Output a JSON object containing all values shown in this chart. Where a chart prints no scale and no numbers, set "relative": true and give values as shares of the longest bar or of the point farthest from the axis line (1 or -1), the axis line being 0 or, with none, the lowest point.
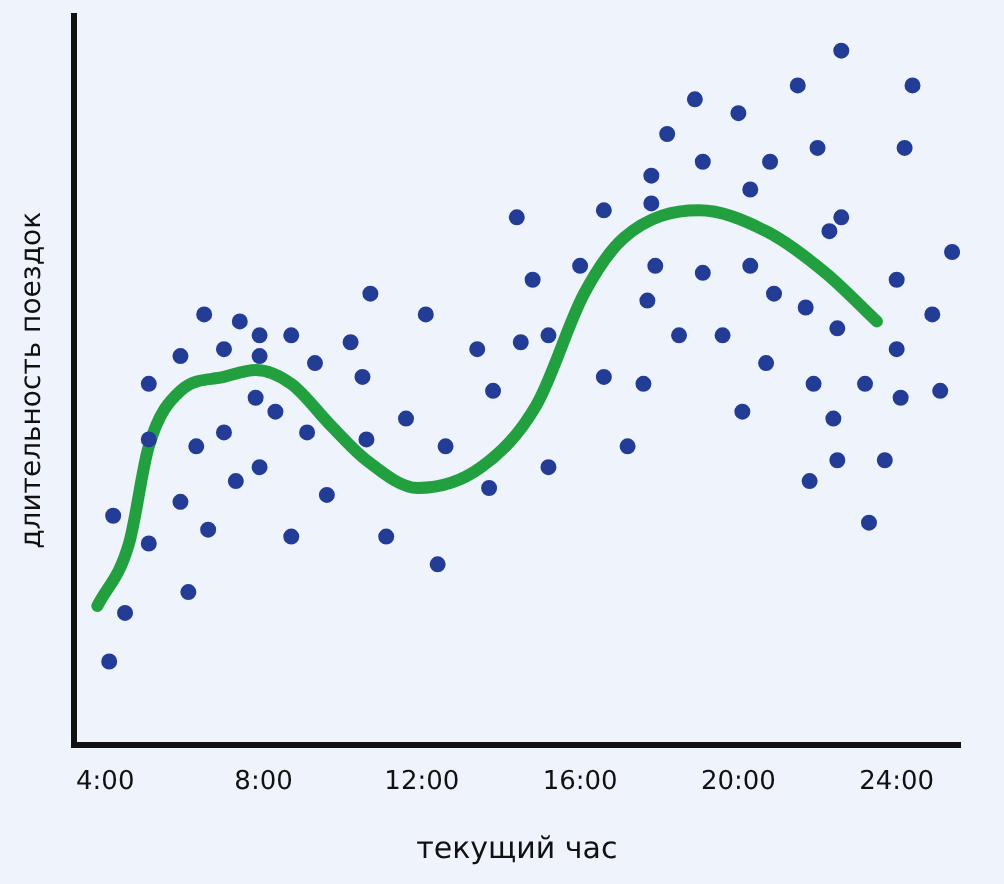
{
  "chart_data": {
    "type": "scatter",
    "xlabel": "текущий час",
    "ylabel": "длительность поездок",
    "relative": true,
    "legend": false,
    "marker": "circle",
    "xlim": [
      3.2,
      25.6
    ],
    "xticks": [
      {
        "value": 4,
        "label": "4:00"
      },
      {
        "value": 8,
        "label": "8:00"
      },
      {
        "value": 12,
        "label": "12:00"
      },
      {
        "value": 16,
        "label": "16:00"
      },
      {
        "value": 20,
        "label": "20:00"
      },
      {
        "value": 24,
        "label": "24:00"
      }
    ],
    "series": [
      {
        "color": "#233d96",
        "x": [
          4.1,
          4.5,
          4.2,
          5.1,
          5.1,
          5.1,
          5.9,
          6.5,
          7.4,
          7.0,
          7.9,
          7.9,
          8.7,
          9.3,
          10.2,
          10.5,
          10.7,
          12.1,
          7.8,
          8.3,
          7.0,
          6.3,
          9.1,
          10.6,
          11.6,
          12.6,
          7.9,
          7.3,
          5.9,
          9.6,
          6.6,
          8.7,
          11.1,
          12.4,
          6.1,
          18.9,
          18.2,
          19.1,
          17.8,
          17.8,
          16.6,
          14.4,
          16.0,
          17.9,
          19.1,
          14.8,
          17.7,
          13.4,
          14.5,
          15.2,
          18.5,
          16.6,
          17.6,
          13.8,
          17.2,
          15.2,
          13.7,
          22.6,
          24.4,
          20.0,
          21.5,
          20.8,
          22.0,
          24.2,
          20.3,
          22.6,
          22.3,
          25.4,
          20.3,
          24.0,
          20.9,
          21.7,
          24.9,
          19.6,
          22.5,
          24.0,
          20.7,
          21.9,
          23.2,
          24.1,
          25.1,
          20.1,
          22.4,
          22.5,
          23.7,
          21.8,
          23.3
        ],
        "values": [
          0.12,
          0.19,
          0.33,
          0.29,
          0.44,
          0.52,
          0.56,
          0.62,
          0.61,
          0.57,
          0.59,
          0.56,
          0.59,
          0.55,
          0.58,
          0.53,
          0.65,
          0.62,
          0.5,
          0.48,
          0.45,
          0.43,
          0.45,
          0.44,
          0.47,
          0.43,
          0.4,
          0.38,
          0.35,
          0.36,
          0.31,
          0.3,
          0.3,
          0.26,
          0.22,
          0.93,
          0.88,
          0.84,
          0.82,
          0.78,
          0.77,
          0.76,
          0.69,
          0.69,
          0.68,
          0.67,
          0.64,
          0.57,
          0.58,
          0.59,
          0.59,
          0.53,
          0.52,
          0.51,
          0.43,
          0.4,
          0.37,
          1,
          0.95,
          0.91,
          0.95,
          0.84,
          0.86,
          0.86,
          0.8,
          0.76,
          0.74,
          0.71,
          0.69,
          0.67,
          0.65,
          0.63,
          0.62,
          0.59,
          0.6,
          0.57,
          0.55,
          0.52,
          0.52,
          0.5,
          0.51,
          0.48,
          0.47,
          0.41,
          0.41,
          0.38,
          0.32
        ]
      },
      {
        "type": "line",
        "color": "#22a040",
        "marker": "none",
        "line_style": "solid",
        "x": [
          3.8,
          4.6,
          5.1,
          5.9,
          7.0,
          7.8,
          8.7,
          9.7,
          10.6,
          11.9,
          13.5,
          14.9,
          16.1,
          17.1,
          19.0,
          20.7,
          22.2,
          23.5
        ],
        "values": [
          0.2,
          0.29,
          0.43,
          0.51,
          0.53,
          0.54,
          0.52,
          0.46,
          0.41,
          0.37,
          0.4,
          0.49,
          0.65,
          0.73,
          0.77,
          0.74,
          0.68,
          0.61
        ]
      }
    ]
  }
}
